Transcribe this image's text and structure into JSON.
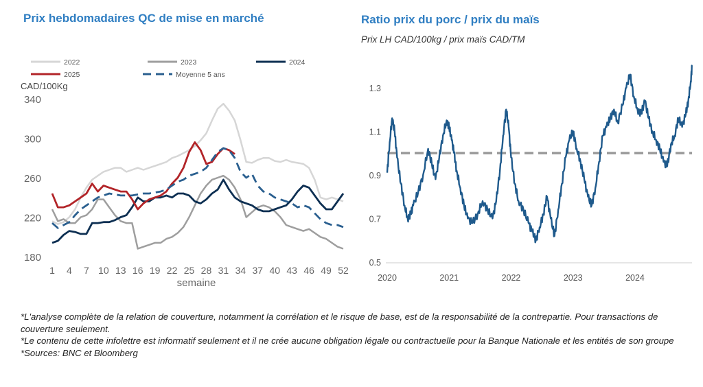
{
  "chart_data": [
    {
      "type": "line",
      "title": "Prix hebdomadaires QC de mise en marché",
      "ylabel": "CAD/100Kg",
      "xlabel": "semaine",
      "ylim": [
        180,
        340
      ],
      "yticks": [
        180,
        220,
        260,
        300,
        340
      ],
      "xticks": [
        1,
        4,
        7,
        10,
        13,
        16,
        19,
        22,
        25,
        28,
        31,
        34,
        37,
        40,
        43,
        46,
        49,
        52
      ],
      "xlim": [
        1,
        52
      ],
      "grid": false,
      "legend_position": "top",
      "series": [
        {
          "name": "2022",
          "color": "#d6d6d6",
          "dash": false,
          "width": 2.5,
          "x": [
            1,
            2,
            3,
            4,
            5,
            6,
            7,
            8,
            9,
            10,
            11,
            12,
            13,
            14,
            15,
            16,
            17,
            18,
            19,
            20,
            21,
            22,
            23,
            24,
            25,
            26,
            27,
            28,
            29,
            30,
            31,
            32,
            33,
            34,
            35,
            36,
            37,
            38,
            39,
            40,
            41,
            42,
            43,
            44,
            45,
            46,
            47,
            48,
            49,
            50,
            51,
            52
          ],
          "values": [
            216,
            213,
            215,
            220,
            228,
            240,
            250,
            258,
            262,
            266,
            268,
            270,
            270,
            266,
            268,
            270,
            268,
            270,
            272,
            274,
            276,
            280,
            282,
            285,
            288,
            292,
            298,
            305,
            318,
            330,
            335,
            328,
            318,
            298,
            276,
            275,
            278,
            280,
            280,
            277,
            276,
            278,
            276,
            275,
            274,
            270,
            258,
            240,
            238,
            240,
            238,
            236
          ]
        },
        {
          "name": "2023",
          "color": "#9e9e9e",
          "dash": false,
          "width": 2.5,
          "x": [
            1,
            2,
            3,
            4,
            5,
            6,
            7,
            8,
            9,
            10,
            11,
            12,
            13,
            14,
            15,
            16,
            17,
            18,
            19,
            20,
            21,
            22,
            23,
            24,
            25,
            26,
            27,
            28,
            29,
            30,
            31,
            32,
            33,
            34,
            35,
            36,
            37,
            38,
            39,
            40,
            41,
            42,
            43,
            44,
            45,
            46,
            47,
            48,
            49,
            50,
            51,
            52
          ],
          "values": [
            228,
            216,
            218,
            214,
            214,
            220,
            222,
            228,
            238,
            238,
            230,
            222,
            216,
            214,
            214,
            188,
            190,
            192,
            194,
            194,
            198,
            200,
            204,
            210,
            220,
            232,
            244,
            252,
            258,
            260,
            262,
            258,
            250,
            238,
            220,
            225,
            230,
            232,
            230,
            226,
            220,
            212,
            210,
            208,
            206,
            208,
            204,
            200,
            198,
            194,
            190,
            188
          ]
        },
        {
          "name": "2024",
          "color": "#0d2f52",
          "dash": false,
          "width": 2.8,
          "x": [
            1,
            2,
            3,
            4,
            5,
            6,
            7,
            8,
            9,
            10,
            11,
            12,
            13,
            14,
            15,
            16,
            17,
            18,
            19,
            20,
            21,
            22,
            23,
            24,
            25,
            26,
            27,
            28,
            29,
            30,
            31,
            32,
            33,
            34,
            35,
            36,
            37,
            38,
            39,
            40,
            41,
            42,
            43,
            44,
            45,
            46,
            47,
            48,
            49,
            50,
            51,
            52
          ],
          "values": [
            194,
            196,
            202,
            206,
            205,
            203,
            203,
            214,
            214,
            215,
            215,
            217,
            220,
            222,
            230,
            240,
            236,
            236,
            240,
            240,
            242,
            240,
            244,
            244,
            242,
            236,
            234,
            238,
            244,
            248,
            258,
            248,
            240,
            236,
            234,
            232,
            228,
            226,
            226,
            228,
            230,
            232,
            238,
            246,
            252,
            250,
            242,
            234,
            228,
            228,
            236,
            244
          ]
        },
        {
          "name": "2025",
          "color": "#b22428",
          "dash": false,
          "width": 2.8,
          "x": [
            1,
            2,
            3,
            4,
            5,
            6,
            7,
            8,
            9,
            10,
            11,
            12,
            13,
            14,
            15,
            16,
            17,
            18,
            19,
            20,
            21,
            22,
            23,
            24,
            25,
            26,
            27,
            28,
            29,
            30,
            31,
            32,
            33
          ],
          "values": [
            244,
            230,
            230,
            232,
            236,
            240,
            244,
            254,
            246,
            252,
            250,
            248,
            246,
            246,
            238,
            228,
            234,
            238,
            240,
            242,
            246,
            254,
            260,
            270,
            286,
            296,
            288,
            274,
            276,
            284,
            290,
            288,
            284
          ]
        },
        {
          "name": "Moyenne 5 ans",
          "color": "#2a5f8f",
          "dash": true,
          "width": 2.8,
          "x": [
            1,
            2,
            3,
            4,
            5,
            6,
            7,
            8,
            9,
            10,
            11,
            12,
            13,
            14,
            15,
            16,
            17,
            18,
            19,
            20,
            21,
            22,
            23,
            24,
            25,
            26,
            27,
            28,
            29,
            30,
            31,
            32,
            33,
            34,
            35,
            36,
            37,
            38,
            39,
            40,
            41,
            42,
            43,
            44,
            45,
            46,
            47,
            48,
            49,
            50,
            51,
            52
          ],
          "values": [
            214,
            209,
            212,
            215,
            222,
            228,
            232,
            236,
            240,
            242,
            244,
            243,
            242,
            242,
            242,
            243,
            244,
            244,
            245,
            246,
            248,
            252,
            256,
            258,
            262,
            264,
            266,
            270,
            278,
            286,
            290,
            288,
            280,
            266,
            260,
            264,
            252,
            246,
            244,
            240,
            238,
            236,
            234,
            230,
            232,
            230,
            224,
            218,
            214,
            212,
            212,
            210
          ]
        }
      ]
    },
    {
      "type": "line",
      "title": "Ratio prix du porc / prix du maïs",
      "subtitle": "Prix LH CAD/100kg / prix maïs CAD/TM",
      "ylim": [
        0.5,
        1.4
      ],
      "yticks": [
        "0.5",
        "0.7",
        "0.9",
        "1.1",
        "1.3"
      ],
      "xlim": [
        2020,
        2024.92
      ],
      "xticks": [
        "2020",
        "2021",
        "2022",
        "2023",
        "2024"
      ],
      "grid": false,
      "reference_line": {
        "value": 1.0,
        "color": "#999999",
        "dash": true
      },
      "series": [
        {
          "color": "#1f5a8c",
          "x": [
            2020.0,
            2020.04,
            2020.08,
            2020.12,
            2020.16,
            2020.22,
            2020.28,
            2020.33,
            2020.38,
            2020.42,
            2020.5,
            2020.58,
            2020.66,
            2020.72,
            2020.78,
            2020.84,
            2020.9,
            2020.96,
            2021.0,
            2021.04,
            2021.08,
            2021.12,
            2021.18,
            2021.24,
            2021.3,
            2021.38,
            2021.46,
            2021.54,
            2021.62,
            2021.7,
            2021.76,
            2021.82,
            2021.87,
            2021.92,
            2021.96,
            2022.0,
            2022.06,
            2022.12,
            2022.2,
            2022.28,
            2022.34,
            2022.4,
            2022.46,
            2022.52,
            2022.58,
            2022.64,
            2022.7,
            2022.76,
            2022.82,
            2022.88,
            2022.94,
            2023.0,
            2023.06,
            2023.12,
            2023.18,
            2023.24,
            2023.3,
            2023.36,
            2023.42,
            2023.48,
            2023.54,
            2023.6,
            2023.66,
            2023.72,
            2023.8,
            2023.86,
            2023.92,
            2023.98,
            2024.04,
            2024.1,
            2024.16,
            2024.22,
            2024.28,
            2024.34,
            2024.4,
            2024.46,
            2024.52,
            2024.58,
            2024.64,
            2024.7,
            2024.76,
            2024.82,
            2024.86,
            2024.9,
            2024.92
          ],
          "values": [
            0.91,
            1.05,
            1.16,
            1.1,
            0.98,
            0.86,
            0.76,
            0.7,
            0.72,
            0.76,
            0.82,
            0.9,
            1.02,
            0.95,
            0.88,
            0.98,
            1.08,
            1.15,
            1.12,
            1.06,
            1.0,
            0.92,
            0.84,
            0.76,
            0.7,
            0.68,
            0.72,
            0.78,
            0.74,
            0.7,
            0.78,
            0.92,
            1.08,
            1.2,
            1.12,
            0.98,
            0.86,
            0.78,
            0.74,
            0.68,
            0.64,
            0.6,
            0.66,
            0.72,
            0.8,
            0.7,
            0.62,
            0.74,
            0.86,
            0.98,
            1.06,
            1.1,
            1.02,
            0.96,
            0.88,
            0.8,
            0.76,
            0.84,
            0.96,
            1.08,
            1.12,
            1.16,
            1.2,
            1.14,
            1.22,
            1.3,
            1.36,
            1.26,
            1.2,
            1.18,
            1.24,
            1.16,
            1.1,
            1.06,
            1.02,
            0.96,
            0.94,
            1.04,
            1.08,
            1.16,
            1.12,
            1.18,
            1.24,
            1.33,
            1.4
          ]
        }
      ]
    }
  ],
  "notes": [
    "*L'analyse complète de la relation de couverture, notamment la corrélation et le risque de base, est de la responsabilité de la contrepartie. Pour transactions de couverture seulement.",
    "*Le contenu de cette infolettre est informatif seulement et il ne crée aucune obligation légale ou contractuelle pour la Banque Nationale et les entités de son groupe",
    "*Sources: BNC et Bloomberg"
  ]
}
